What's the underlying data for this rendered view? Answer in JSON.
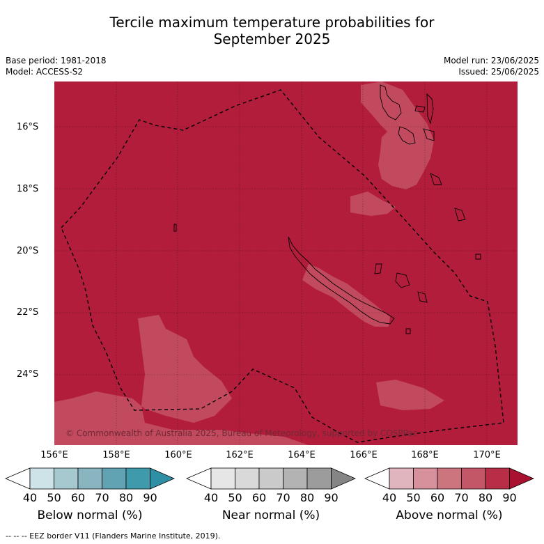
{
  "title_line1": "Tercile maximum temperature probabilities for",
  "title_line2": "September 2025",
  "meta": {
    "base_period": "Base period: 1981-2018",
    "model": "Model: ACCESS-S2",
    "model_run": "Model run: 23/06/2025",
    "issued": "Issued: 25/06/2025"
  },
  "copyright": "© Commonwealth of Australia 2025, Bureau of Meteorology, supported by COSPPac",
  "lat_labels": [
    "16°S",
    "18°S",
    "20°S",
    "22°S",
    "24°S"
  ],
  "lon_labels": [
    "156°E",
    "158°E",
    "160°E",
    "162°E",
    "164°E",
    "166°E",
    "168°E",
    "170°E"
  ],
  "colorbars": {
    "below": {
      "title": "Below normal (%)",
      "ticks": [
        "40",
        "50",
        "60",
        "70",
        "80",
        "90"
      ],
      "colors": [
        "#ffffff",
        "#cde3e8",
        "#a6c8cf",
        "#88b5c0",
        "#62a3b3",
        "#3f9aab",
        "#2f8fa4"
      ]
    },
    "near": {
      "title": "Near normal (%)",
      "ticks": [
        "40",
        "50",
        "60",
        "70",
        "80",
        "90"
      ],
      "colors": [
        "#ffffff",
        "#e6e6e6",
        "#d9d9d9",
        "#cacaca",
        "#b3b3b3",
        "#9c9c9c",
        "#858585"
      ]
    },
    "above": {
      "title": "Above normal (%)",
      "ticks": [
        "40",
        "50",
        "60",
        "70",
        "80",
        "90"
      ],
      "colors": [
        "#ffffff",
        "#e0b5bd",
        "#d6919c",
        "#cd757f",
        "#c45767",
        "#b92e47",
        "#a8112f"
      ]
    }
  },
  "footnote": "-- -- -- EEZ border V11 (Flanders Marine Institute, 2019).",
  "map_colors": {
    "dominant": "#b21d3b",
    "lighter": "#c24a5e"
  }
}
